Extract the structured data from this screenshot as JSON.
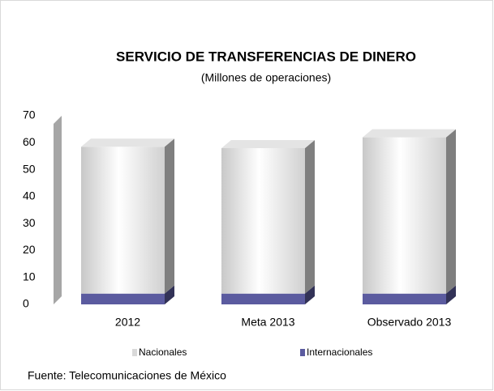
{
  "chart_data": {
    "type": "bar3d_stacked",
    "title": "SERVICIO DE TRANSFERENCIAS DE DINERO",
    "subtitle": "(Millones de operaciones)",
    "categories": [
      "2012",
      "Meta 2013",
      "Observado 2013"
    ],
    "series": [
      {
        "name": "Internacionales",
        "color": "#5b5b9f",
        "values": [
          4,
          4,
          4
        ]
      },
      {
        "name": "Nacionales",
        "color": "#e8e8e8",
        "values": [
          54.5,
          54,
          58
        ]
      }
    ],
    "legend_order": [
      "Nacionales",
      "Internacionales"
    ],
    "ylim": [
      0,
      70
    ],
    "yticks": [
      0,
      10,
      20,
      30,
      40,
      50,
      60,
      70
    ],
    "source": "Fuente: Telecomunicaciones de México"
  }
}
